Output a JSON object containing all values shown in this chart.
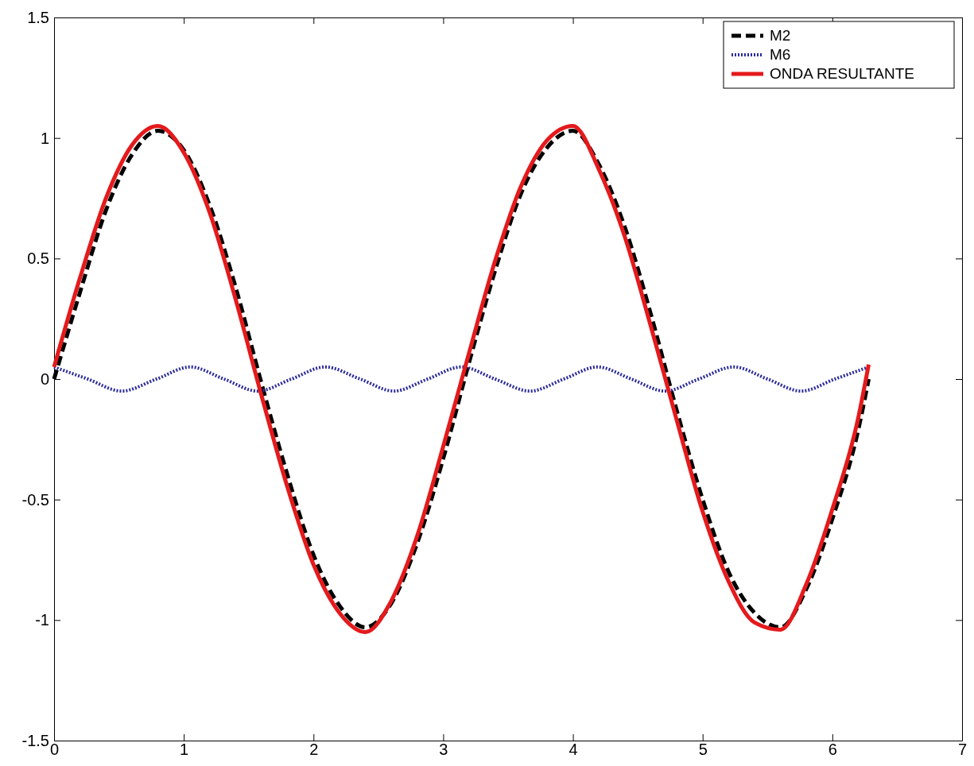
{
  "chart_data": {
    "type": "line",
    "xlim": [
      0,
      7
    ],
    "xticks": [
      0,
      1,
      2,
      3,
      4,
      5,
      6,
      7
    ],
    "ylim": [
      -1.5,
      1.5
    ],
    "yticks": [
      -1.5,
      -1,
      -0.5,
      0,
      0.5,
      1,
      1.5
    ],
    "grid": false,
    "legend": "top right",
    "marker": "none",
    "series": [
      {
        "name": "M2",
        "color": "#000000",
        "line_style": "dashed",
        "x": [
          0,
          0.2,
          0.4,
          0.6,
          0.8,
          1.0,
          1.2,
          1.4,
          1.6,
          1.8,
          2.0,
          2.2,
          2.4,
          2.6,
          2.8,
          3.0,
          3.2,
          3.4,
          3.6,
          3.8,
          4.0,
          4.2,
          4.4,
          4.6,
          4.8,
          5.0,
          5.2,
          5.4,
          5.6,
          5.8,
          6.0,
          6.2,
          6.28
        ],
        "values": [
          0.0,
          0.36,
          0.7,
          0.93,
          1.03,
          0.95,
          0.72,
          0.38,
          -0.02,
          -0.4,
          -0.73,
          -0.94,
          -1.03,
          -0.93,
          -0.68,
          -0.33,
          0.07,
          0.45,
          0.77,
          0.96,
          1.03,
          0.89,
          0.63,
          0.27,
          -0.13,
          -0.5,
          -0.8,
          -0.97,
          -1.03,
          -0.87,
          -0.58,
          -0.21,
          0.0
        ]
      },
      {
        "name": "M6",
        "color": "#2b2b9c",
        "line_style": "dotted",
        "x": [
          0,
          0.26,
          0.52,
          0.79,
          1.05,
          1.31,
          1.57,
          1.83,
          2.09,
          2.36,
          2.62,
          2.88,
          3.14,
          3.4,
          3.67,
          3.93,
          4.19,
          4.45,
          4.71,
          4.97,
          5.24,
          5.5,
          5.76,
          6.02,
          6.28
        ],
        "values": [
          0.05,
          0,
          -0.05,
          0,
          0.05,
          0,
          -0.05,
          0,
          0.05,
          0,
          -0.05,
          0,
          0.05,
          0,
          -0.05,
          0,
          0.05,
          0,
          -0.05,
          0,
          0.05,
          0,
          -0.05,
          0,
          0.05
        ]
      },
      {
        "name": "ONDA RESULTANTE",
        "color": "#e41a1c",
        "line_style": "solid",
        "x": [
          0,
          0.2,
          0.4,
          0.6,
          0.8,
          1.0,
          1.2,
          1.4,
          1.6,
          1.8,
          2.0,
          2.2,
          2.4,
          2.6,
          2.8,
          3.0,
          3.2,
          3.4,
          3.6,
          3.8,
          4.0,
          4.2,
          4.4,
          4.6,
          4.8,
          5.0,
          5.2,
          5.4,
          5.6,
          5.8,
          6.0,
          6.2,
          6.28
        ],
        "values": [
          0.05,
          0.42,
          0.75,
          0.97,
          1.05,
          0.94,
          0.69,
          0.33,
          -0.07,
          -0.45,
          -0.77,
          -0.97,
          -1.05,
          -0.92,
          -0.65,
          -0.28,
          0.11,
          0.49,
          0.8,
          0.99,
          1.05,
          0.87,
          0.59,
          0.22,
          -0.17,
          -0.55,
          -0.84,
          -1.01,
          -1.04,
          -0.85,
          -0.54,
          -0.16,
          0.06
        ]
      }
    ]
  }
}
